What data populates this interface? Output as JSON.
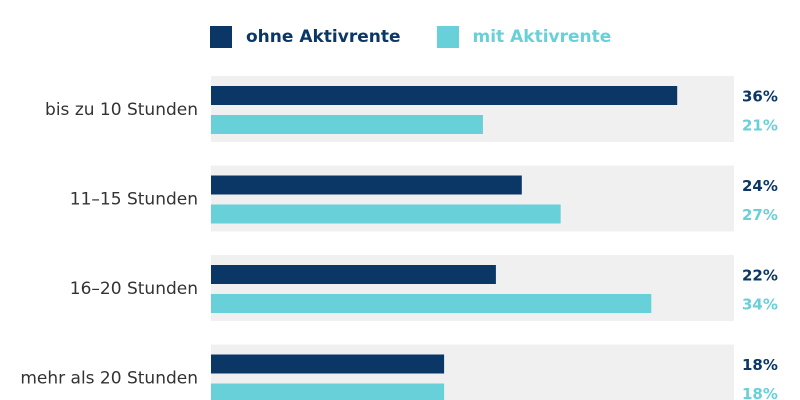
{
  "colors": {
    "series1": "#0a3766",
    "series2": "#68d0d8",
    "band": "#f0f0f0",
    "category_text": "#333333"
  },
  "legend": [
    {
      "label": "ohne Aktivrente"
    },
    {
      "label": "mit Aktivrente"
    }
  ],
  "chart_data": {
    "type": "bar",
    "orientation": "horizontal",
    "categories": [
      "bis zu 10 Stunden",
      "11–15 Stunden",
      "16–20 Stunden",
      "mehr als 20 Stunden"
    ],
    "series": [
      {
        "name": "ohne Aktivrente",
        "values": [
          36,
          24,
          22,
          18
        ],
        "labels": [
          "36%",
          "24%",
          "22%",
          "18%"
        ]
      },
      {
        "name": "mit Aktivrente",
        "values": [
          21,
          27,
          34,
          18
        ],
        "labels": [
          "21%",
          "27%",
          "34%",
          "18%"
        ]
      }
    ],
    "xlim": [
      0,
      40
    ],
    "grid": false,
    "legend_position": "top"
  }
}
